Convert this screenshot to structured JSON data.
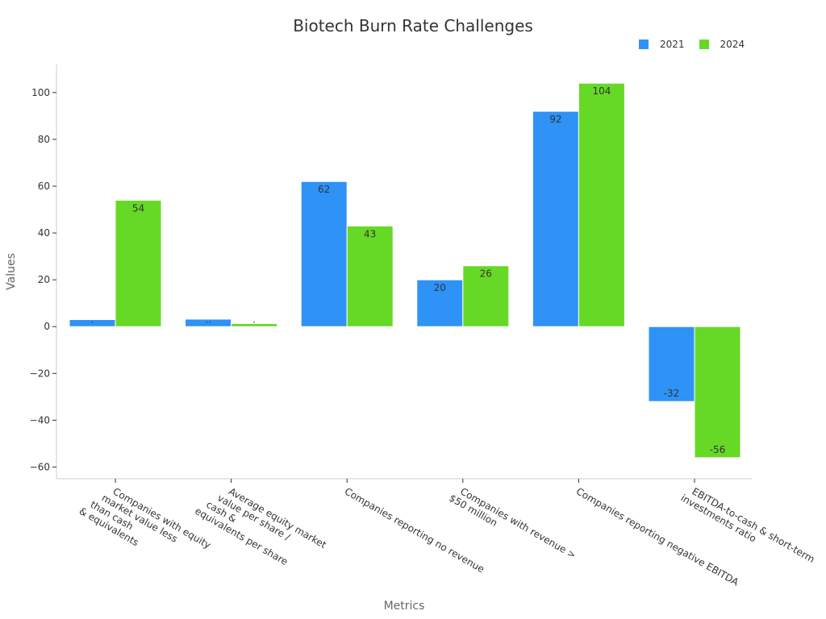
{
  "chart_data": {
    "type": "bar",
    "title": "Biotech Burn Rate Challenges",
    "xlabel": "Metrics",
    "ylabel": "Values",
    "ylim": [
      -65,
      112
    ],
    "yticks": [
      -60,
      -40,
      -20,
      0,
      20,
      40,
      60,
      80,
      100
    ],
    "ytick_labels": [
      "−60",
      "−40",
      "−20",
      "0",
      "20",
      "40",
      "60",
      "80",
      "100"
    ],
    "categories": [
      [
        "Companies with equity",
        "market value less",
        "than cash",
        "& equivalents"
      ],
      [
        "Average equity market",
        "value per share /",
        "cash &",
        "equivalents per share"
      ],
      [
        "Companies reporting no revenue"
      ],
      [
        "Companies with revenue >",
        "$50 million"
      ],
      [
        "Companies reporting negative EBITDA"
      ],
      [
        "EBITDA-to-cash & short-term",
        "investments ratio"
      ]
    ],
    "series": [
      {
        "name": "2021",
        "color": "#2e92f7",
        "values": [
          3,
          3.2,
          62,
          20,
          92,
          -32
        ],
        "labels": [
          "·",
          "··",
          "62",
          "20",
          "92",
          "-32"
        ]
      },
      {
        "name": "2024",
        "color": "#66d927",
        "values": [
          54,
          1.3,
          43,
          26,
          104,
          -56
        ],
        "labels": [
          "54",
          "·",
          "43",
          "26",
          "104",
          "-56"
        ]
      }
    ],
    "legend_position": "top-right"
  }
}
